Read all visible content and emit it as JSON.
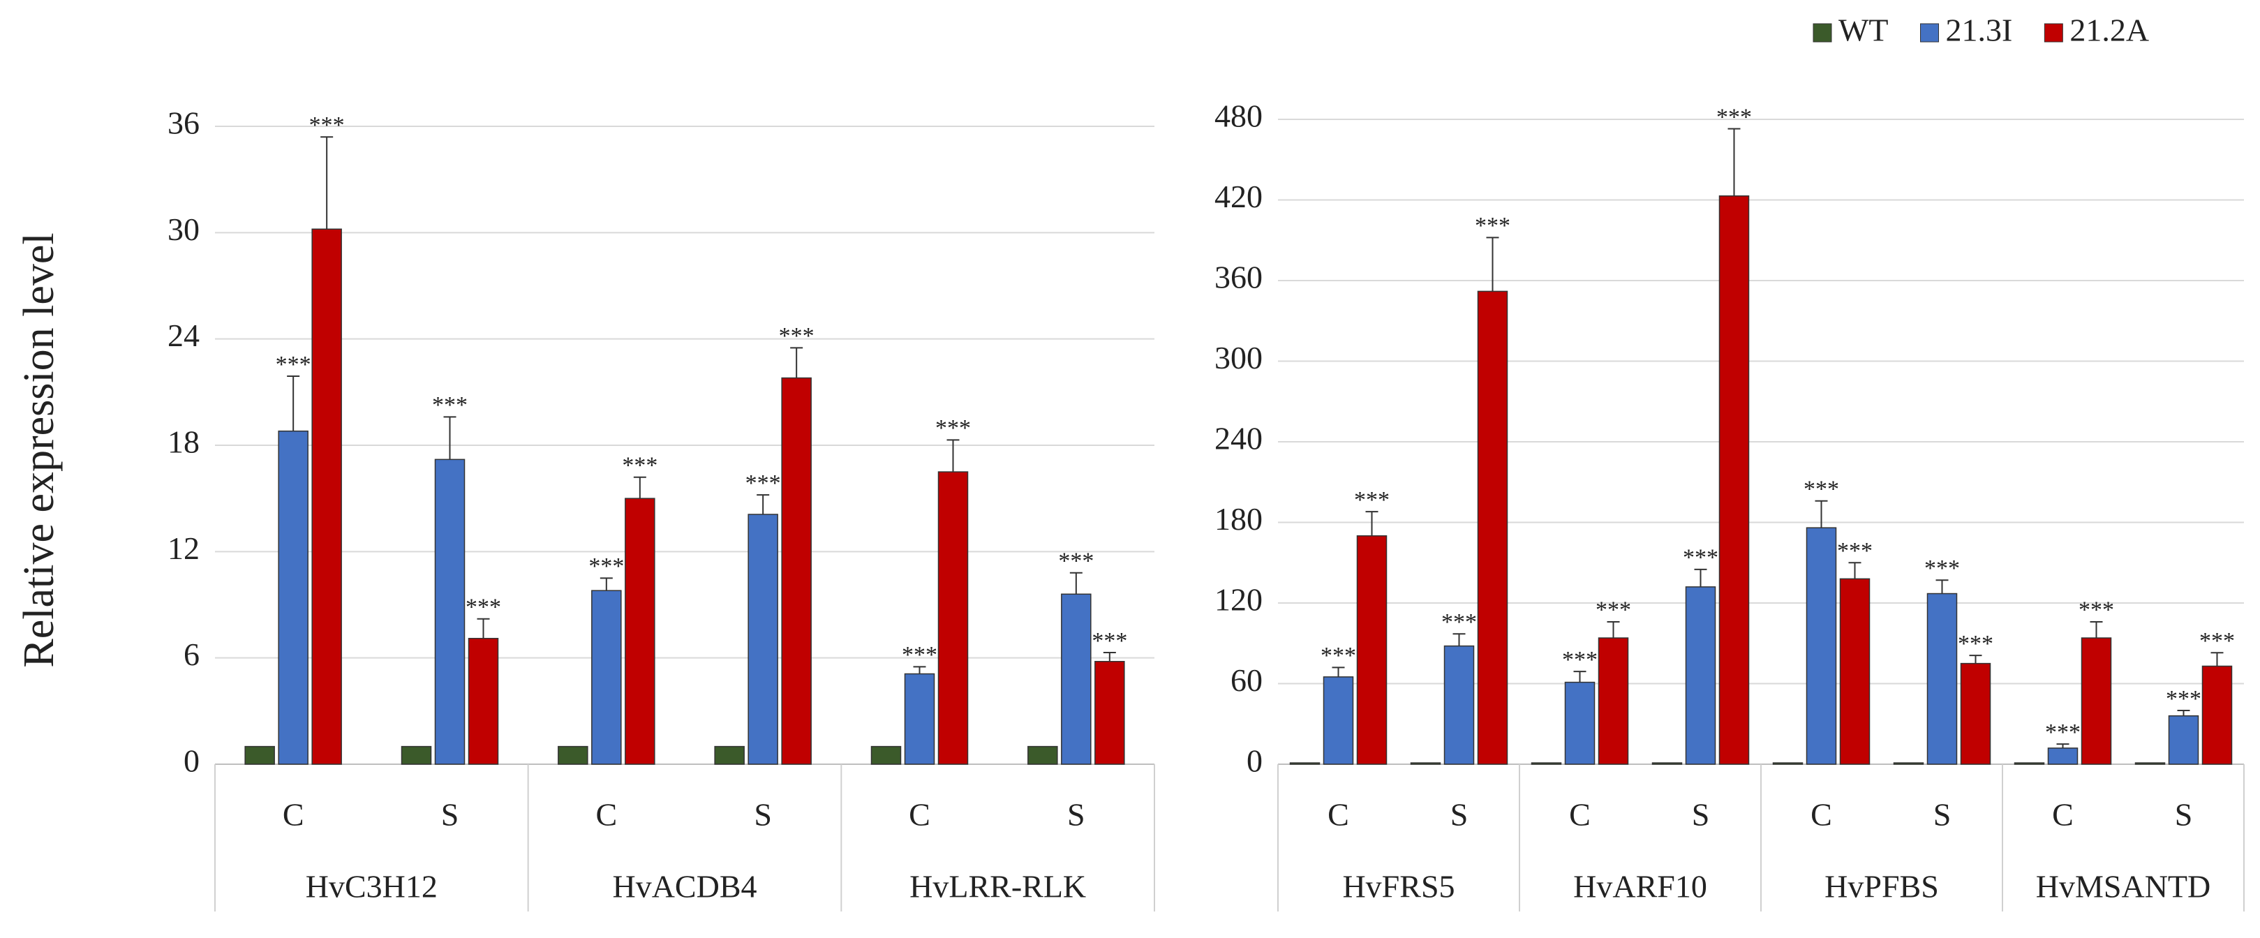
{
  "chart_data": [
    {
      "type": "bar",
      "ylabel": "Relative expression level",
      "legend": "top-right",
      "groups": [
        "HvC3H12",
        "HvACDB4",
        "HvLRR-RLK"
      ],
      "categories": [
        "C",
        "S",
        "C",
        "S",
        "C",
        "S"
      ],
      "series": [
        {
          "name": "WT",
          "color": "#3b5a2a",
          "values": [
            1,
            1,
            1,
            1,
            1,
            1
          ]
        },
        {
          "name": "21.3I",
          "color": "#4472c4",
          "values": [
            18.8,
            17.2,
            9.8,
            14.1,
            5.1,
            9.6
          ],
          "errors": [
            3.1,
            2.4,
            0.7,
            1.1,
            0.4,
            1.2
          ],
          "sig": [
            "***",
            "***",
            "***",
            "***",
            "***",
            "***"
          ]
        },
        {
          "name": "21.2A",
          "color": "#c00000",
          "values": [
            30.2,
            7.1,
            15,
            21.8,
            16.5,
            5.8
          ],
          "errors": [
            5.2,
            1.1,
            1.2,
            1.7,
            1.8,
            0.5
          ],
          "sig": [
            "***",
            "***",
            "***",
            "***",
            "***",
            "***"
          ]
        }
      ],
      "ylim": [
        0,
        36
      ],
      "yticks": [
        0,
        6,
        12,
        18,
        24,
        30,
        36
      ],
      "grid": true
    },
    {
      "type": "bar",
      "groups": [
        "HvFRS5",
        "HvARF10",
        "HvPFBS",
        "HvMSANTD"
      ],
      "categories": [
        "C",
        "S",
        "C",
        "S",
        "C",
        "S",
        "C",
        "S"
      ],
      "series": [
        {
          "color": "#3b5a2a",
          "values": [
            1,
            1,
            1,
            1,
            1,
            1,
            1,
            1
          ]
        },
        {
          "color": "#4472c4",
          "values": [
            65,
            88,
            61,
            132,
            176,
            127,
            12,
            36
          ],
          "errors": [
            7,
            9,
            8,
            13,
            20,
            10,
            3,
            4
          ],
          "sig": [
            "***",
            "***",
            "***",
            "***",
            "***",
            "***",
            "***",
            "***"
          ]
        },
        {
          "color": "#c00000",
          "values": [
            170,
            352,
            94,
            423,
            138,
            75,
            94,
            73
          ],
          "errors": [
            18,
            40,
            12,
            50,
            12,
            6,
            12,
            10
          ],
          "sig": [
            "***",
            "***",
            "***",
            "***",
            "***",
            "***",
            "***",
            "***"
          ]
        }
      ],
      "ylim": [
        0,
        480
      ],
      "yticks": [
        0,
        60,
        120,
        180,
        240,
        300,
        360,
        420,
        480
      ],
      "grid": true
    }
  ]
}
